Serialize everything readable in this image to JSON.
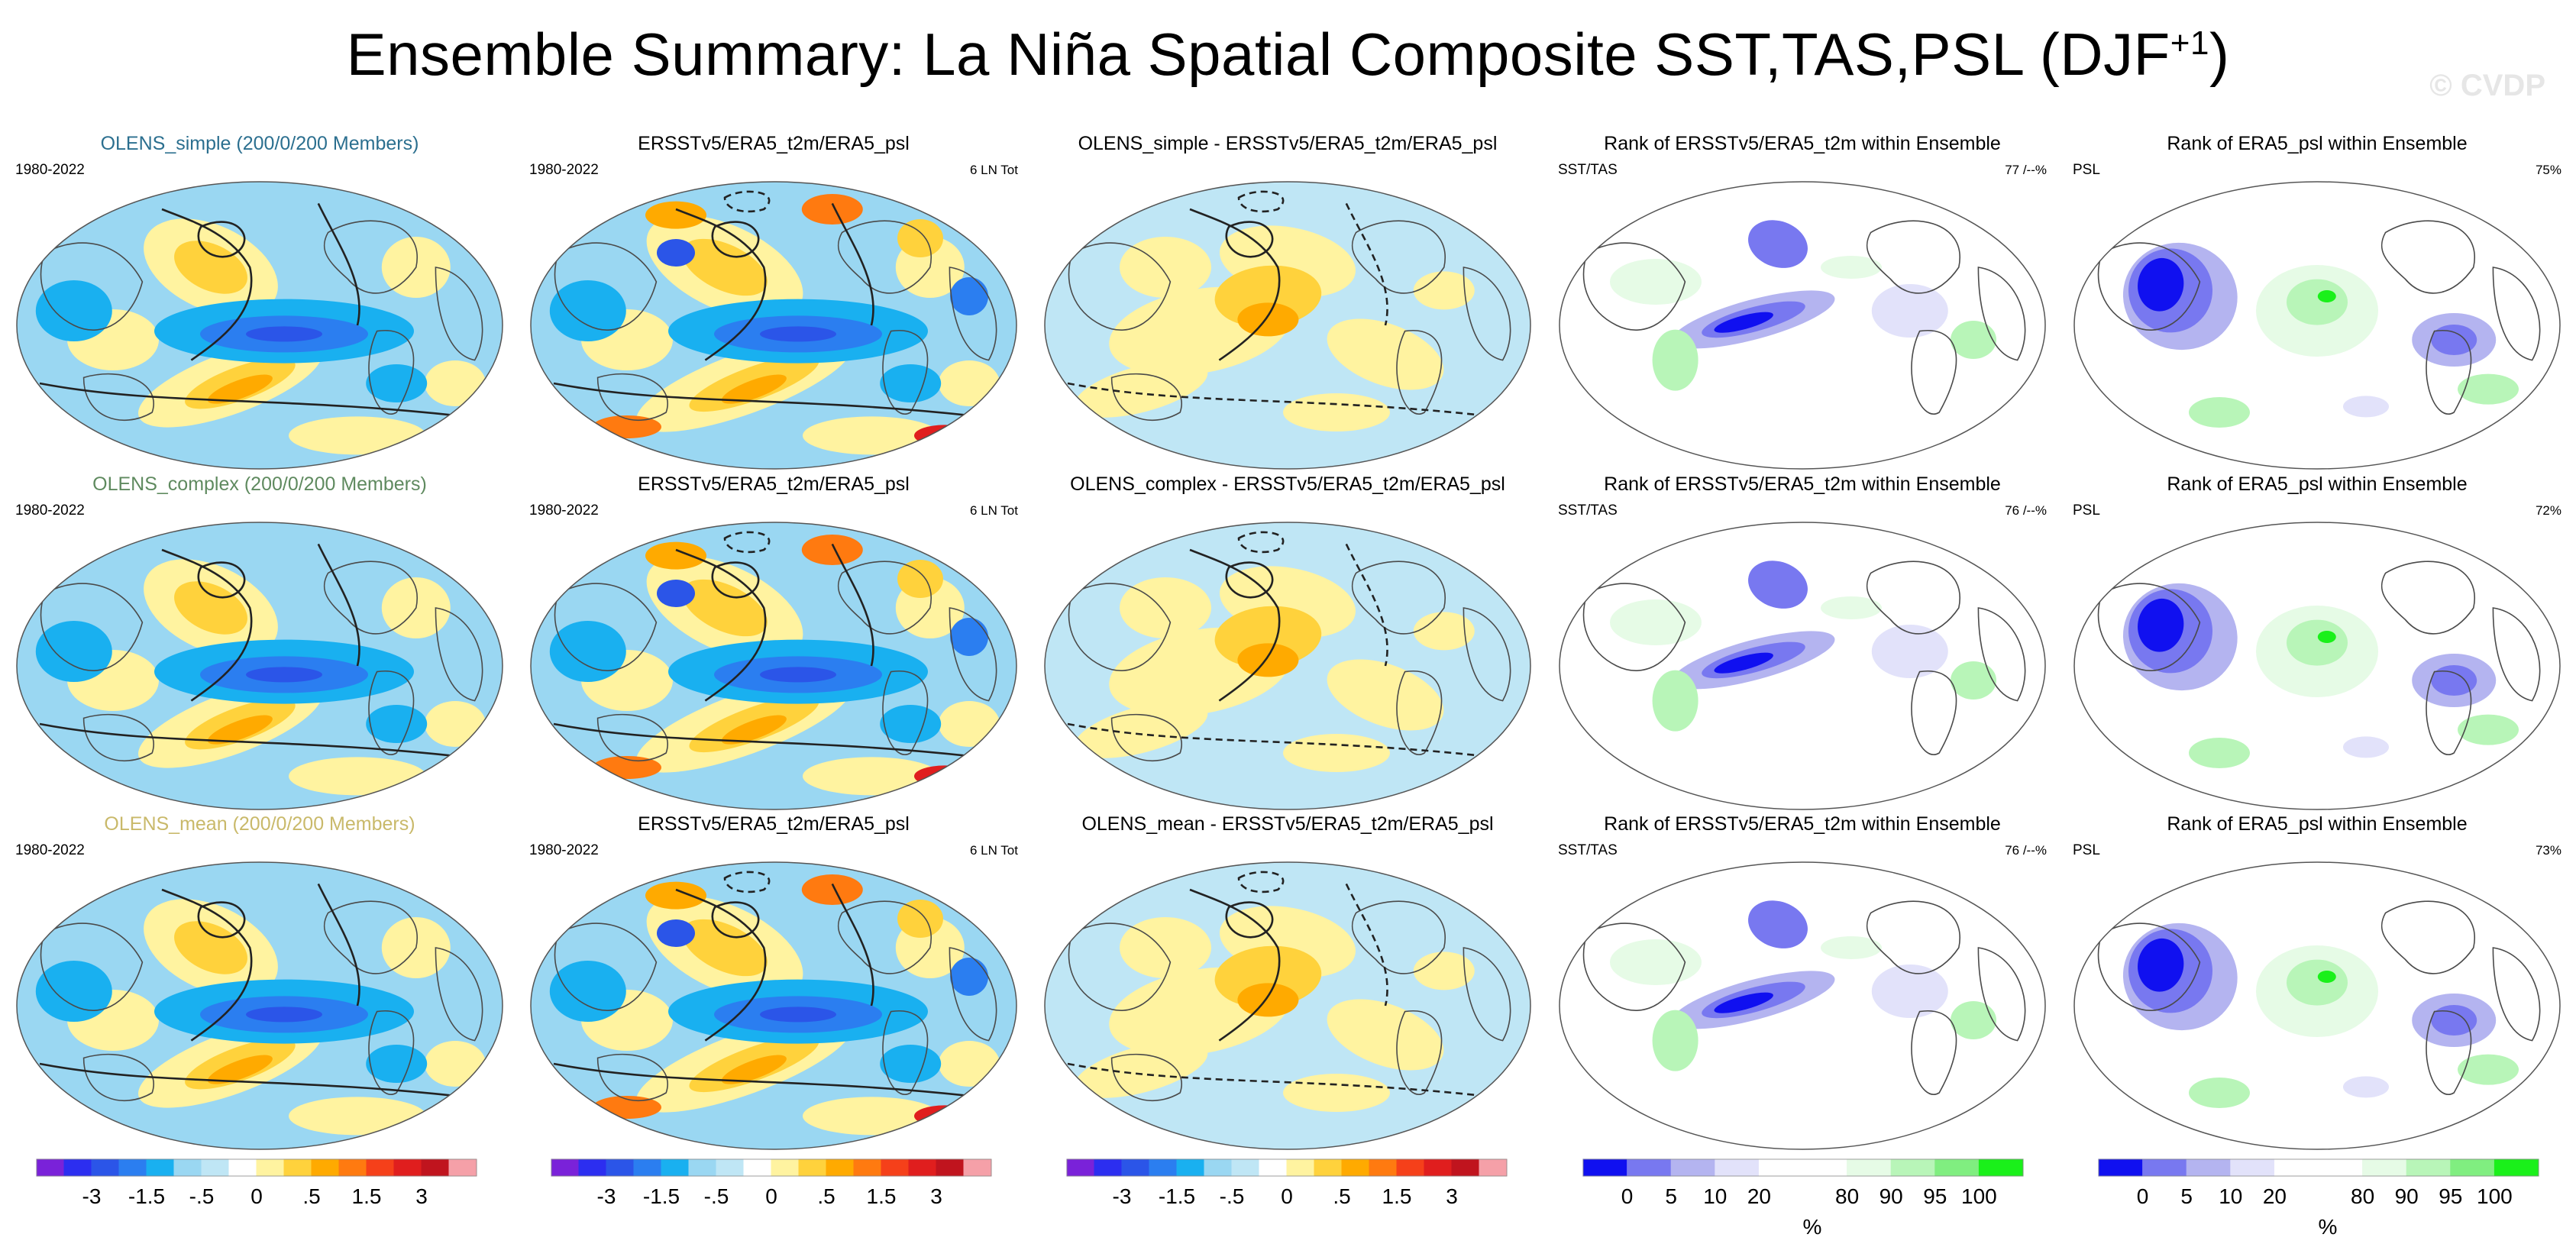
{
  "page": {
    "title_main": "Ensemble Summary: La Niña Spatial Composite SST,TAS,PSL (DJF",
    "title_sup": "+1",
    "title_close": ")",
    "watermark": "© CVDP"
  },
  "colors": {
    "row_title_simple": "#2b6f8f",
    "row_title_complex": "#5f8a5f",
    "row_title_mean": "#c9b96a"
  },
  "chart_data": [
    {
      "type": "heatmap",
      "row": "simple",
      "column": "ensemble",
      "title": "OLENS_simple (200/0/200 Members)",
      "corner_left": "1980-2022",
      "corner_right": ""
    },
    {
      "type": "heatmap",
      "row": "simple",
      "column": "observations",
      "title": "ERSSTv5/ERA5_t2m/ERA5_psl",
      "corner_left": "1980-2022",
      "corner_right": "6 LN Tot"
    },
    {
      "type": "heatmap",
      "row": "simple",
      "column": "difference",
      "title": "OLENS_simple - ERSSTv5/ERA5_t2m/ERA5_psl",
      "corner_left": "",
      "corner_right": ""
    },
    {
      "type": "heatmap",
      "row": "simple",
      "column": "rank_sst_tas",
      "title": "Rank of ERSSTv5/ERA5_t2m within Ensemble",
      "corner_left": "SST/TAS",
      "corner_right": "77 /--%"
    },
    {
      "type": "heatmap",
      "row": "simple",
      "column": "rank_psl",
      "title": "Rank of ERA5_psl within Ensemble",
      "corner_left": "PSL",
      "corner_right": "75%"
    },
    {
      "type": "heatmap",
      "row": "complex",
      "column": "ensemble",
      "title": "OLENS_complex (200/0/200 Members)",
      "corner_left": "1980-2022",
      "corner_right": ""
    },
    {
      "type": "heatmap",
      "row": "complex",
      "column": "observations",
      "title": "ERSSTv5/ERA5_t2m/ERA5_psl",
      "corner_left": "1980-2022",
      "corner_right": "6 LN Tot"
    },
    {
      "type": "heatmap",
      "row": "complex",
      "column": "difference",
      "title": "OLENS_complex - ERSSTv5/ERA5_t2m/ERA5_psl",
      "corner_left": "",
      "corner_right": ""
    },
    {
      "type": "heatmap",
      "row": "complex",
      "column": "rank_sst_tas",
      "title": "Rank of ERSSTv5/ERA5_t2m within Ensemble",
      "corner_left": "SST/TAS",
      "corner_right": "76 /--%"
    },
    {
      "type": "heatmap",
      "row": "complex",
      "column": "rank_psl",
      "title": "Rank of ERA5_psl within Ensemble",
      "corner_left": "PSL",
      "corner_right": "72%"
    },
    {
      "type": "heatmap",
      "row": "mean",
      "column": "ensemble",
      "title": "OLENS_mean (200/0/200 Members)",
      "corner_left": "1980-2022",
      "corner_right": ""
    },
    {
      "type": "heatmap",
      "row": "mean",
      "column": "observations",
      "title": "ERSSTv5/ERA5_t2m/ERA5_psl",
      "corner_left": "1980-2022",
      "corner_right": "6 LN Tot"
    },
    {
      "type": "heatmap",
      "row": "mean",
      "column": "difference",
      "title": "OLENS_mean - ERSSTv5/ERA5_t2m/ERA5_psl",
      "corner_left": "",
      "corner_right": ""
    },
    {
      "type": "heatmap",
      "row": "mean",
      "column": "rank_sst_tas",
      "title": "Rank of ERSSTv5/ERA5_t2m within Ensemble",
      "corner_left": "SST/TAS",
      "corner_right": "76 /--%"
    },
    {
      "type": "heatmap",
      "row": "mean",
      "column": "rank_psl",
      "title": "Rank of ERA5_psl within Ensemble",
      "corner_left": "PSL",
      "corner_right": "73%"
    }
  ],
  "colorbars": {
    "anomaly": {
      "colors": [
        "#7a22d9",
        "#2c2ef0",
        "#2b55e8",
        "#2b7ef0",
        "#19b0f0",
        "#9ad7f2",
        "#bfe6f5",
        "#ffffff",
        "#fff3a0",
        "#ffd23c",
        "#ffaa00",
        "#ff7a10",
        "#f5401a",
        "#e01e1e",
        "#c0141e",
        "#f5a0a8"
      ],
      "tick_labels": [
        "-3",
        "-1.5",
        "-.5",
        "0",
        ".5",
        "1.5",
        "3"
      ],
      "tick_boundaries": [
        2,
        4,
        6,
        8,
        10,
        12,
        14
      ]
    },
    "rank": {
      "colors": [
        "#1010f0",
        "#7878f0",
        "#b4b4f0",
        "#e2e2fa",
        "#ffffff",
        "#ffffff",
        "#e6fbe6",
        "#b8f5b8",
        "#80ee80",
        "#1af01a"
      ],
      "tick_labels": [
        "0",
        "5",
        "10",
        "20",
        "80",
        "90",
        "95",
        "100"
      ],
      "tick_boundaries": [
        1,
        2,
        3,
        4,
        6,
        7,
        8,
        9
      ],
      "unit_label": "%"
    }
  }
}
